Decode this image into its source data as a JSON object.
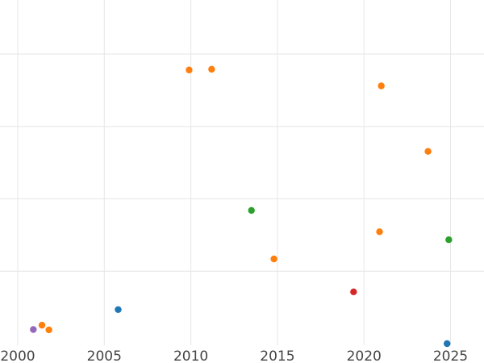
{
  "chart_data": {
    "type": "scatter",
    "title": "",
    "xlabel": "",
    "ylabel": "",
    "xlim": [
      2000,
      2026.6
    ],
    "ylim": [
      0,
      100
    ],
    "grid": true,
    "x_ticks": [
      2000,
      2005,
      2010,
      2015,
      2020,
      2025
    ],
    "x_tick_labels": [
      "2000",
      "2005",
      "2010",
      "2015",
      "2020",
      "2025"
    ],
    "y_gridlines": [
      20,
      40,
      60,
      80
    ],
    "y_tick_labels_visible": false,
    "colors": {
      "blue": "#1f77b4",
      "orange": "#ff7f0e",
      "green": "#2ca02c",
      "red": "#d62728",
      "purple": "#9467bd",
      "grid": "#e6e6e6",
      "tick_text": "#444444"
    },
    "series": [
      {
        "color": "#1f77b4",
        "points": [
          {
            "x": 2005.8,
            "y": 9.4
          },
          {
            "x": 2024.8,
            "y": 0.0
          }
        ]
      },
      {
        "color": "#ff7f0e",
        "points": [
          {
            "x": 2001.4,
            "y": 5.1
          },
          {
            "x": 2001.8,
            "y": 3.8
          },
          {
            "x": 2009.9,
            "y": 75.6
          },
          {
            "x": 2011.2,
            "y": 75.8
          },
          {
            "x": 2014.8,
            "y": 23.4
          },
          {
            "x": 2020.9,
            "y": 30.9
          },
          {
            "x": 2021.0,
            "y": 71.2
          },
          {
            "x": 2023.7,
            "y": 53.1
          }
        ]
      },
      {
        "color": "#2ca02c",
        "points": [
          {
            "x": 2013.5,
            "y": 36.8
          },
          {
            "x": 2024.9,
            "y": 28.7
          }
        ]
      },
      {
        "color": "#d62728",
        "points": [
          {
            "x": 2019.4,
            "y": 14.3
          }
        ]
      },
      {
        "color": "#9467bd",
        "points": [
          {
            "x": 2000.9,
            "y": 3.9
          }
        ]
      }
    ]
  }
}
